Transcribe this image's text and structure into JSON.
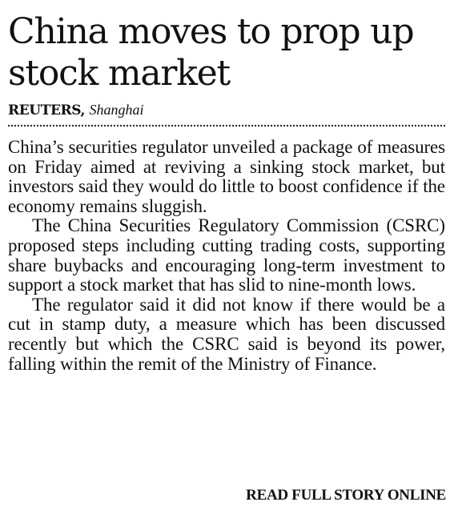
{
  "article": {
    "headline": "China moves to prop up stock market",
    "byline": {
      "agency": "REUTERS,",
      "location": "Shanghai"
    },
    "paragraphs": [
      "China’s securities regulator unveiled a package of measures on Friday aimed at reviving a sinking stock market, but investors said they would do little to boost confidence if the economy remains sluggish.",
      "The China Securities Regulatory Commission (CSRC) proposed steps including cutting trading costs, supporting share buybacks and encouraging long-term investment to support a stock market that has slid to nine-month lows.",
      "The regulator said it did not know if there would be a cut in stamp duty, a measure which has been discussed recently but which the CSRC said is beyond its power, falling within the remit of the Ministry of Finance."
    ],
    "read_more_label": "READ FULL STORY ONLINE"
  }
}
